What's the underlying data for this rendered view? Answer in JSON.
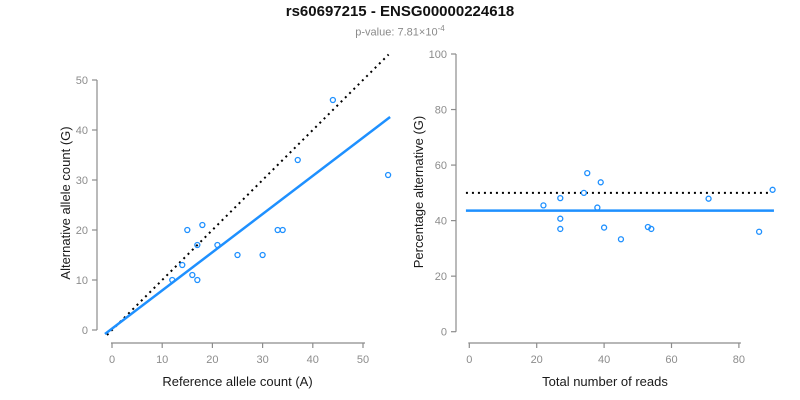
{
  "header": {
    "title": "rs60697215 - ENSG00000224618",
    "subtitle": {
      "prefix": "p-value: ",
      "mantissa": "7.81",
      "times": "×",
      "base": "10",
      "exponent": "-4"
    }
  },
  "colors": {
    "accent_blue": "#1E90FF",
    "line_black": "#000000",
    "axis_gray": "#8c8c8c",
    "subtitle_gray": "#8a8a8a",
    "title_color": "#111111"
  },
  "chart_data": [
    {
      "id": "ref-vs-alt",
      "type": "scatter",
      "title": "",
      "xlabel": "Reference allele count (A)",
      "ylabel": "Alternative allele count (G)",
      "xlim": [
        0,
        50
      ],
      "ylim": [
        0,
        50
      ],
      "xticks": [
        0,
        10,
        20,
        30,
        40,
        50
      ],
      "yticks": [
        0,
        10,
        20,
        30,
        40,
        50
      ],
      "grid": false,
      "legend": "none",
      "marker": "open-circle",
      "points": [
        [
          12,
          10
        ],
        [
          14,
          13
        ],
        [
          15,
          20
        ],
        [
          16,
          11
        ],
        [
          17,
          10
        ],
        [
          17,
          17
        ],
        [
          18,
          21
        ],
        [
          21,
          17
        ],
        [
          25,
          15
        ],
        [
          30,
          15
        ],
        [
          33,
          20
        ],
        [
          34,
          20
        ],
        [
          37,
          34
        ],
        [
          44,
          46
        ],
        [
          55,
          31
        ]
      ],
      "lines": [
        {
          "name": "identity-line",
          "style": "dotted",
          "color": "#000000",
          "slope": 1,
          "intercept": 0
        },
        {
          "name": "fit-line",
          "style": "solid",
          "color": "#1E90FF",
          "slope": 0.764,
          "intercept": 0.27
        }
      ]
    },
    {
      "id": "reads-vs-percentage",
      "type": "scatter",
      "title": "",
      "xlabel": "Total number of reads",
      "ylabel": "Percentage alternative (G)",
      "xlim": [
        0,
        80
      ],
      "ylim": [
        0,
        100
      ],
      "xticks": [
        0,
        20,
        40,
        60,
        80
      ],
      "yticks": [
        0,
        20,
        40,
        60,
        80,
        100
      ],
      "grid": false,
      "legend": "none",
      "marker": "open-circle",
      "points": [
        [
          22,
          45.5
        ],
        [
          27,
          48.1
        ],
        [
          27,
          40.7
        ],
        [
          27,
          37.0
        ],
        [
          34,
          50.0
        ],
        [
          35,
          57.1
        ],
        [
          38,
          44.7
        ],
        [
          39,
          53.8
        ],
        [
          40,
          37.5
        ],
        [
          45,
          33.3
        ],
        [
          53,
          37.7
        ],
        [
          54,
          37.0
        ],
        [
          71,
          47.9
        ],
        [
          86,
          36.0
        ],
        [
          90,
          51.1
        ]
      ],
      "lines": [
        {
          "name": "reference-line-50pct",
          "style": "dotted",
          "color": "#000000",
          "value": 50
        },
        {
          "name": "mean-line",
          "style": "solid",
          "color": "#1E90FF",
          "value": 43.6
        }
      ]
    }
  ]
}
